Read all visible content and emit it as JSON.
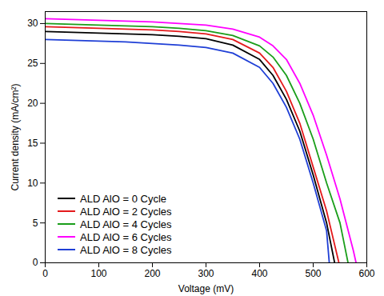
{
  "chart_data": {
    "type": "line",
    "x_label": "Voltage (mV)",
    "y_label": "Current density (mA/cm²)",
    "xlim": [
      0,
      600
    ],
    "xticks": [
      0,
      100,
      200,
      300,
      400,
      500,
      600
    ],
    "ylim": [
      0,
      31.5
    ],
    "yticks": [
      0,
      5,
      10,
      15,
      20,
      25,
      30
    ],
    "grid": false,
    "legend": "lower left",
    "series": [
      {
        "name": "ALD AlO = 0 Cycle",
        "color": "#000000",
        "x": [
          0,
          50,
          100,
          150,
          200,
          250,
          300,
          350,
          400,
          425,
          450,
          475,
          500,
          525,
          540
        ],
        "values": [
          29.0,
          28.9,
          28.8,
          28.7,
          28.6,
          28.4,
          28.1,
          27.3,
          25.5,
          23.5,
          20.5,
          16.5,
          11.0,
          5.0,
          0
        ]
      },
      {
        "name": "ALD AlO = 2 Cycles",
        "color": "#e41a1c",
        "x": [
          0,
          50,
          100,
          150,
          200,
          250,
          300,
          350,
          400,
          425,
          450,
          475,
          500,
          525,
          548
        ],
        "values": [
          29.6,
          29.5,
          29.4,
          29.3,
          29.2,
          29.0,
          28.7,
          28.0,
          26.3,
          24.5,
          21.5,
          17.5,
          12.0,
          6.5,
          0
        ]
      },
      {
        "name": "ALD AlO = 4 Cycles",
        "color": "#1a9e1a",
        "x": [
          0,
          50,
          100,
          150,
          200,
          250,
          300,
          350,
          400,
          425,
          450,
          475,
          500,
          525,
          550,
          565
        ],
        "values": [
          30.0,
          29.9,
          29.8,
          29.7,
          29.6,
          29.4,
          29.1,
          28.5,
          27.2,
          25.8,
          23.5,
          20.0,
          15.5,
          10.0,
          5.0,
          0
        ]
      },
      {
        "name": "ALD AlO = 6 Cycles",
        "color": "#ff00ff",
        "x": [
          0,
          50,
          100,
          150,
          200,
          250,
          300,
          350,
          400,
          425,
          450,
          475,
          500,
          525,
          550,
          575,
          580
        ],
        "values": [
          30.6,
          30.5,
          30.4,
          30.3,
          30.2,
          30.0,
          29.8,
          29.3,
          28.3,
          27.2,
          25.5,
          22.5,
          18.5,
          13.5,
          8.0,
          1.5,
          0
        ]
      },
      {
        "name": "ALD AlO = 8 Cycles",
        "color": "#1f3fd6",
        "x": [
          0,
          50,
          100,
          150,
          200,
          250,
          300,
          350,
          400,
          425,
          450,
          475,
          500,
          525,
          530
        ],
        "values": [
          28.0,
          27.9,
          27.8,
          27.7,
          27.5,
          27.3,
          27.0,
          26.3,
          24.5,
          22.5,
          19.5,
          15.5,
          10.0,
          4.0,
          0
        ]
      }
    ]
  }
}
